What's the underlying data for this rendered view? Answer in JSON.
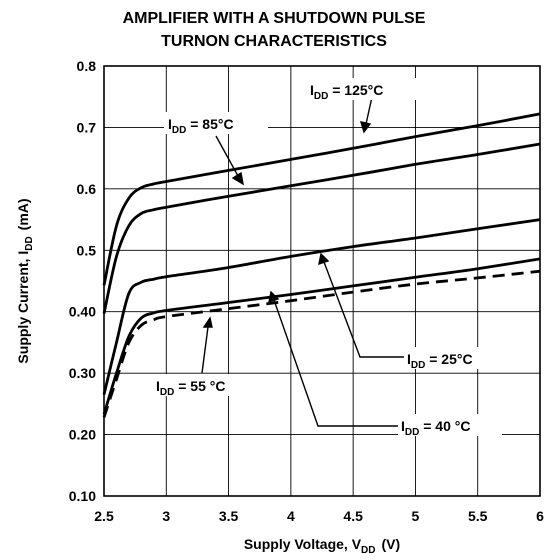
{
  "chart_data": {
    "type": "line",
    "title": [
      "AMPLIFIER WITH A SHUTDOWN PULSE",
      "TURNON CHARACTERISTICS"
    ],
    "xlabel": {
      "main": "Supply Voltage, V",
      "sub": "DD",
      "unit": "(V)"
    },
    "ylabel": {
      "main": "Supply Current, I",
      "sub": "DD",
      "unit": "(mA)"
    },
    "xlim": [
      2.5,
      6
    ],
    "ylim": [
      0.1,
      0.8
    ],
    "xticks": [
      {
        "value": 2.5,
        "label": "2.5"
      },
      {
        "value": 3,
        "label": "3"
      },
      {
        "value": 3.5,
        "label": "3.5"
      },
      {
        "value": 4,
        "label": "4"
      },
      {
        "value": 4.5,
        "label": "4.5"
      },
      {
        "value": 5,
        "label": "5"
      },
      {
        "value": 5.5,
        "label": "5.5"
      },
      {
        "value": 6,
        "label": "6"
      }
    ],
    "yticks": [
      {
        "value": 0.1,
        "label": "0.10"
      },
      {
        "value": 0.2,
        "label": "0.20"
      },
      {
        "value": 0.3,
        "label": "0.30"
      },
      {
        "value": 0.4,
        "label": "0.40"
      },
      {
        "value": 0.5,
        "label": "0.5"
      },
      {
        "value": 0.6,
        "label": "0.6"
      },
      {
        "value": 0.7,
        "label": "0.7"
      },
      {
        "value": 0.8,
        "label": "0.8"
      }
    ],
    "grid": true,
    "series": [
      {
        "id": "t125",
        "style": "solid",
        "x": [
          2.5,
          2.6,
          2.7,
          2.8,
          2.9,
          3.0,
          3.5,
          4.0,
          4.5,
          5.0,
          5.5,
          6.0
        ],
        "y": [
          0.443,
          0.54,
          0.585,
          0.602,
          0.608,
          0.612,
          0.63,
          0.648,
          0.666,
          0.685,
          0.703,
          0.722
        ]
      },
      {
        "id": "t85",
        "style": "solid",
        "x": [
          2.5,
          2.6,
          2.7,
          2.8,
          2.9,
          3.0,
          3.5,
          4.0,
          4.5,
          5.0,
          5.5,
          6.0
        ],
        "y": [
          0.397,
          0.49,
          0.54,
          0.56,
          0.566,
          0.57,
          0.588,
          0.605,
          0.622,
          0.64,
          0.656,
          0.673
        ]
      },
      {
        "id": "t25",
        "style": "solid",
        "x": [
          2.5,
          2.6,
          2.7,
          2.8,
          2.9,
          3.0,
          3.5,
          4.0,
          4.5,
          5.0,
          5.5,
          6.0
        ],
        "y": [
          0.265,
          0.35,
          0.43,
          0.448,
          0.453,
          0.457,
          0.472,
          0.49,
          0.506,
          0.52,
          0.535,
          0.55
        ]
      },
      {
        "id": "t40",
        "style": "solid",
        "x": [
          2.5,
          2.6,
          2.7,
          2.8,
          2.9,
          3.0,
          3.5,
          4.0,
          4.5,
          5.0,
          5.5,
          6.0
        ],
        "y": [
          0.233,
          0.3,
          0.36,
          0.39,
          0.398,
          0.402,
          0.415,
          0.428,
          0.442,
          0.456,
          0.47,
          0.486
        ]
      },
      {
        "id": "t55",
        "style": "dashed",
        "x": [
          2.5,
          2.6,
          2.7,
          2.8,
          2.9,
          3.0,
          3.5,
          4.0,
          4.5,
          5.0,
          5.5,
          6.0
        ],
        "y": [
          0.228,
          0.29,
          0.35,
          0.378,
          0.387,
          0.392,
          0.405,
          0.418,
          0.432,
          0.445,
          0.455,
          0.466
        ]
      }
    ],
    "annotations": [
      {
        "main": "I",
        "sub": "DD",
        "rest": " = 125°C",
        "target": "t125"
      },
      {
        "main": "I",
        "sub": "DD",
        "rest": " = 85°C",
        "target": "t85"
      },
      {
        "main": "I",
        "sub": "DD",
        "rest": " = 25°C",
        "target": "t25"
      },
      {
        "main": "I",
        "sub": "DD",
        "rest": " = 40  °C",
        "target": "t40"
      },
      {
        "main": "I",
        "sub": "DD",
        "rest": " = 55  °C",
        "target": "t55"
      }
    ]
  }
}
